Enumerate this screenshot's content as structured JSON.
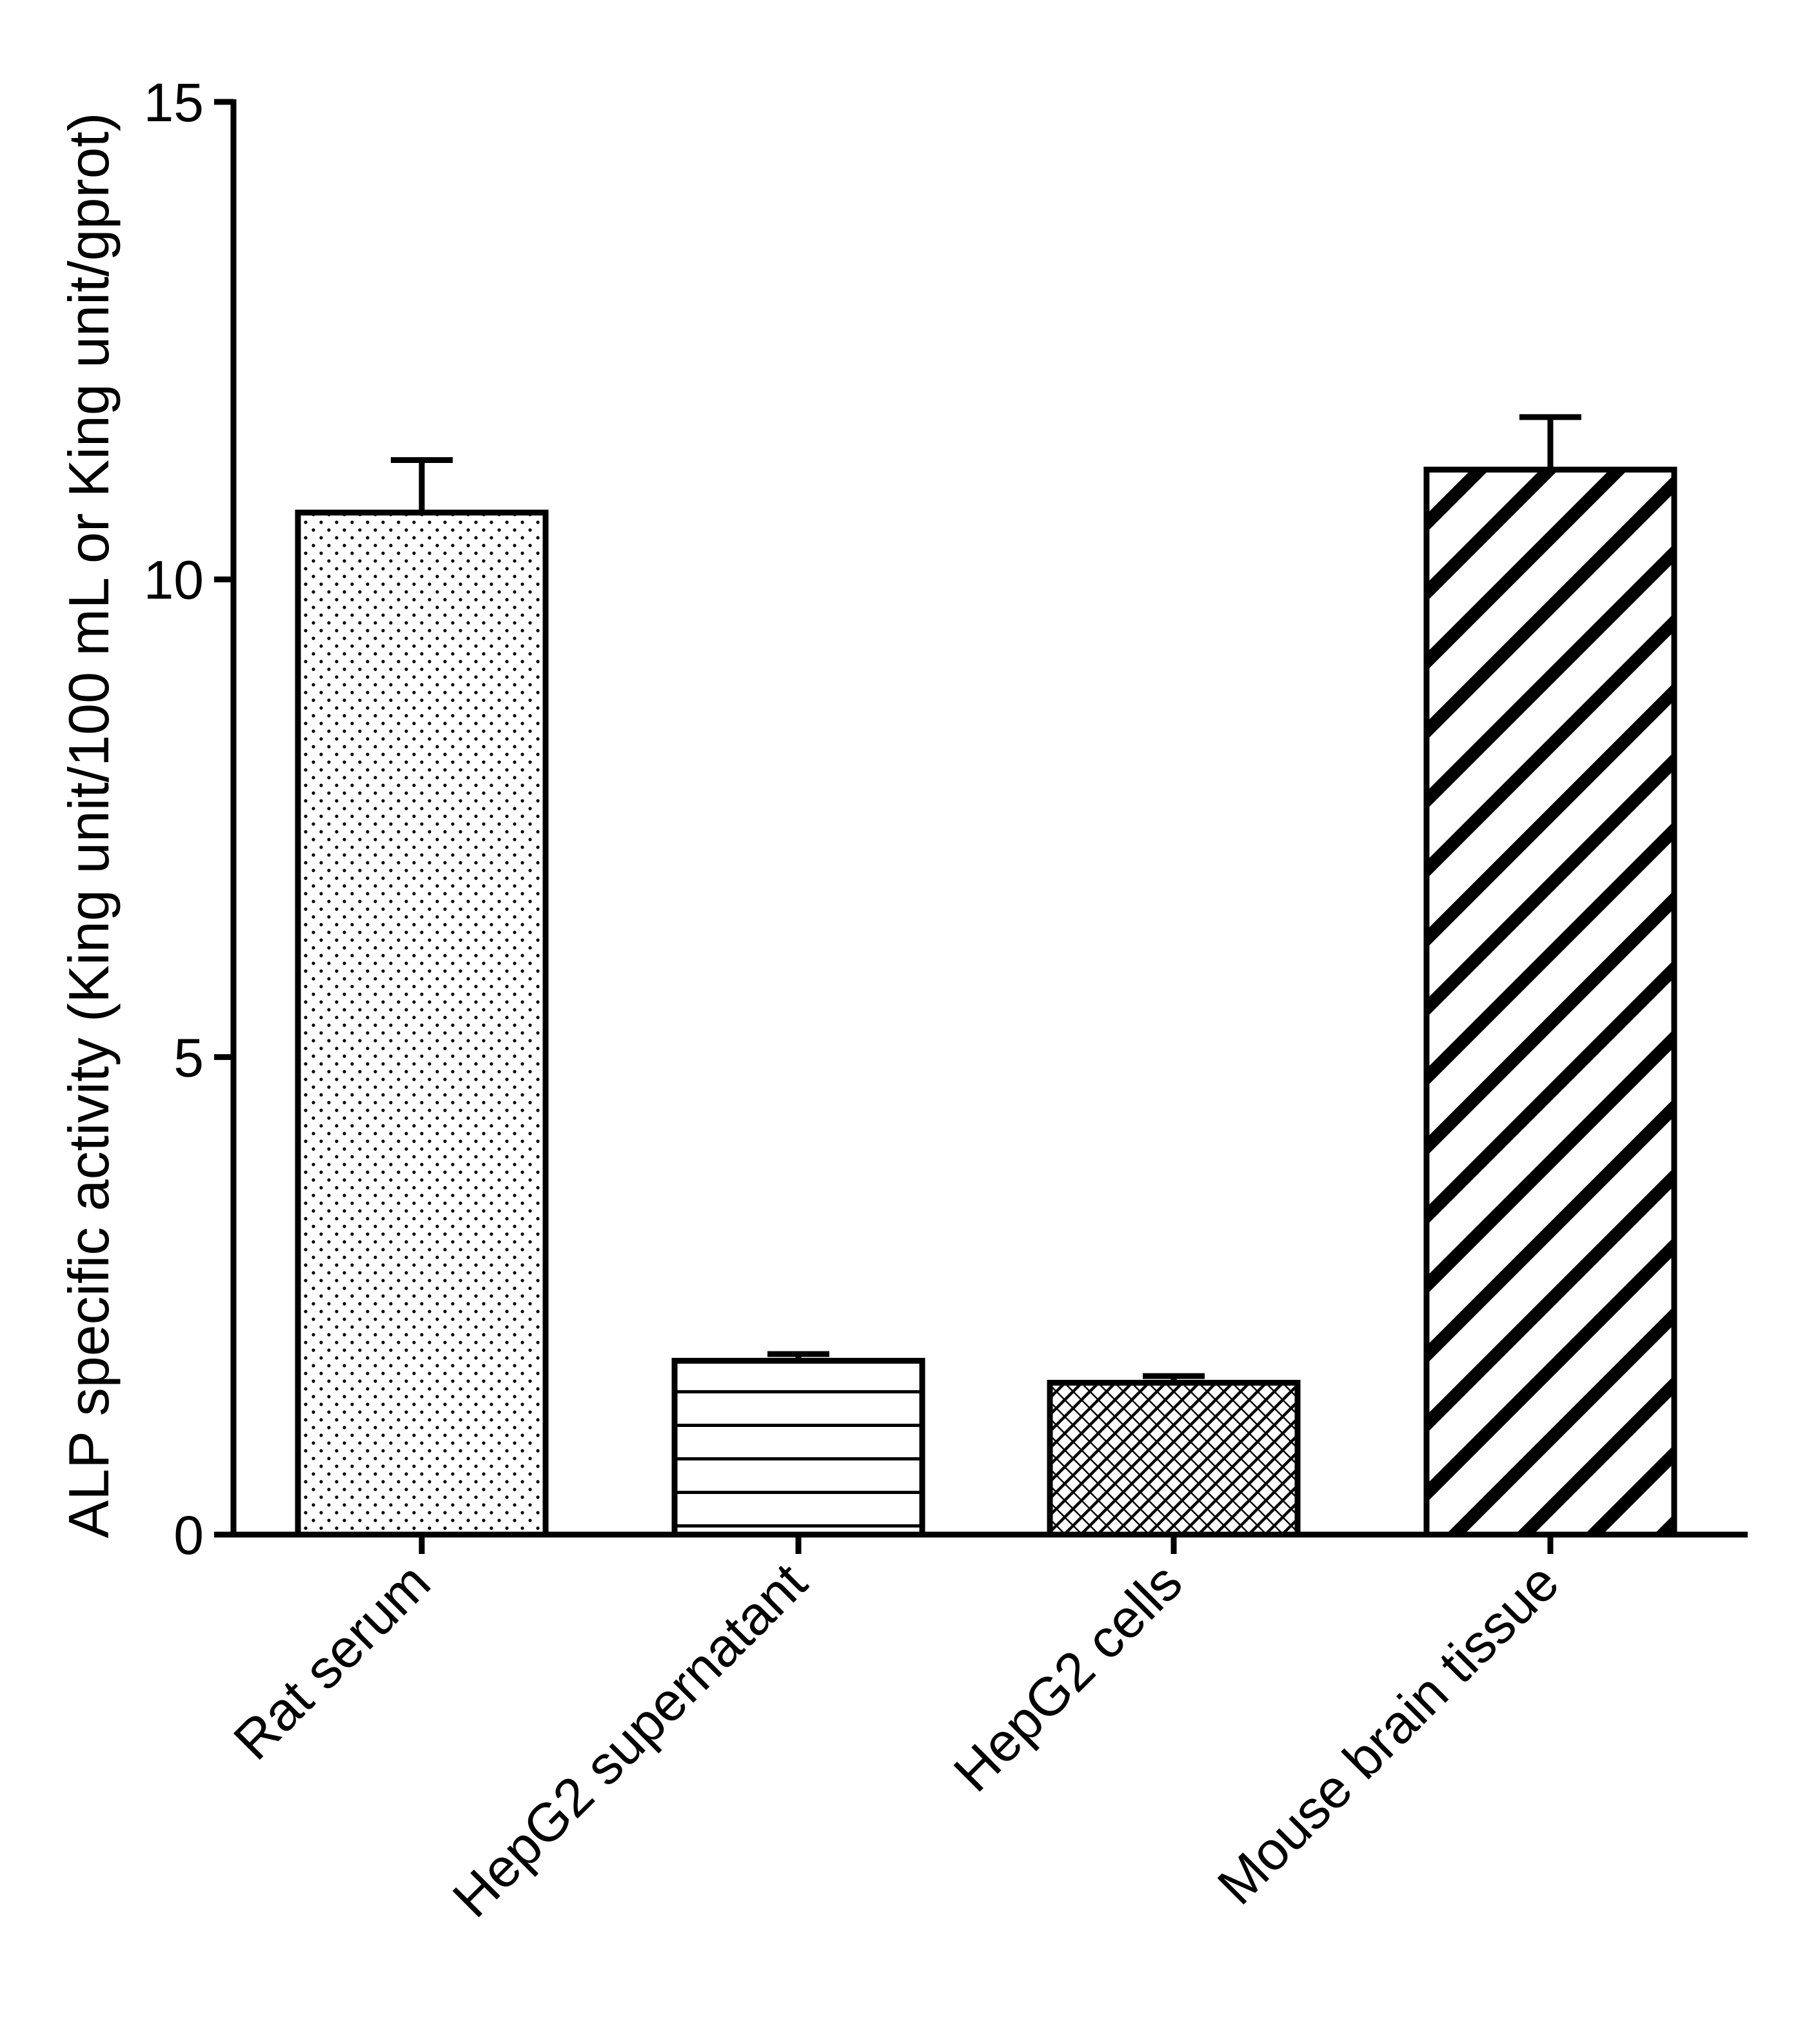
{
  "chart_data": {
    "type": "bar",
    "categories": [
      "Rat serum",
      "HepG2 supernatant",
      "HepG2 cells",
      "Mouse brain tissue"
    ],
    "series": [
      {
        "values": [
          10.7,
          1.82,
          1.59,
          11.15
        ],
        "errors": [
          0.55,
          0.07,
          0.07,
          0.55
        ],
        "patterns": [
          "dots",
          "horizontal-lines",
          "crosshatch",
          "diagonal-stripes"
        ]
      }
    ],
    "title": "",
    "xlabel": "",
    "ylabel": "ALP specific activity (King unit/100 mL or King unit/gprot)",
    "ylim": [
      0,
      15
    ],
    "yticks": [
      0,
      5,
      10,
      15
    ],
    "ytick_labels": [
      "0",
      "5",
      "10",
      "15"
    ],
    "grid": false,
    "legend": "none"
  }
}
